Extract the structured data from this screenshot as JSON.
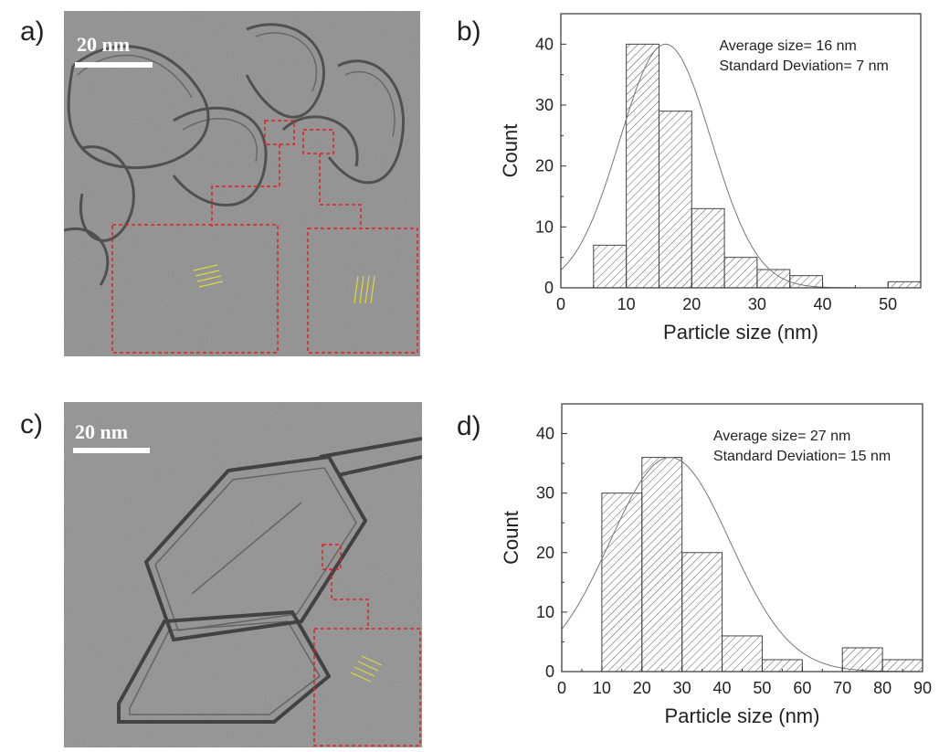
{
  "panels": {
    "a": {
      "label": "a)",
      "scale": "20 nm"
    },
    "b": {
      "label": "b)"
    },
    "c": {
      "label": "c)",
      "scale": "20 nm"
    },
    "d": {
      "label": "d)"
    }
  },
  "colors": {
    "inset_border": "#e02020",
    "lattice_fringe": "#e8e030",
    "hist_stroke": "#444444",
    "fit_curve": "#777777"
  },
  "chart_data": [
    {
      "type": "bar",
      "panel": "b",
      "xlabel": "Particle size (nm)",
      "ylabel": "Count",
      "xlim": [
        0,
        55
      ],
      "ylim": [
        0,
        45
      ],
      "xticks": [
        0,
        10,
        20,
        30,
        40,
        50
      ],
      "yticks": [
        0,
        10,
        20,
        30,
        40
      ],
      "bins": [
        [
          5,
          10
        ],
        [
          10,
          15
        ],
        [
          15,
          20
        ],
        [
          20,
          25
        ],
        [
          25,
          30
        ],
        [
          30,
          35
        ],
        [
          35,
          40
        ],
        [
          50,
          55
        ]
      ],
      "values": [
        7,
        40,
        29,
        13,
        5,
        3,
        2,
        1
      ],
      "annotations": [
        "Average size= 16 nm",
        "Standard Deviation= 7 nm"
      ],
      "fit": {
        "type": "gaussian",
        "mean": 16,
        "sd": 7,
        "peak": 40
      }
    },
    {
      "type": "bar",
      "panel": "d",
      "xlabel": "Particle size (nm)",
      "ylabel": "Count",
      "xlim": [
        0,
        90
      ],
      "ylim": [
        0,
        45
      ],
      "xticks": [
        0,
        10,
        20,
        30,
        40,
        50,
        60,
        70,
        80,
        90
      ],
      "yticks": [
        0,
        10,
        20,
        30,
        40
      ],
      "bins": [
        [
          10,
          20
        ],
        [
          20,
          30
        ],
        [
          30,
          40
        ],
        [
          40,
          50
        ],
        [
          50,
          60
        ],
        [
          70,
          80
        ],
        [
          80,
          90
        ]
      ],
      "values": [
        30,
        36,
        20,
        6,
        2,
        4,
        2
      ],
      "annotations": [
        "Average size= 27 nm",
        "Standard Deviation= 15 nm"
      ],
      "fit": {
        "type": "gaussian",
        "mean": 27,
        "sd": 15,
        "peak": 36
      }
    }
  ]
}
